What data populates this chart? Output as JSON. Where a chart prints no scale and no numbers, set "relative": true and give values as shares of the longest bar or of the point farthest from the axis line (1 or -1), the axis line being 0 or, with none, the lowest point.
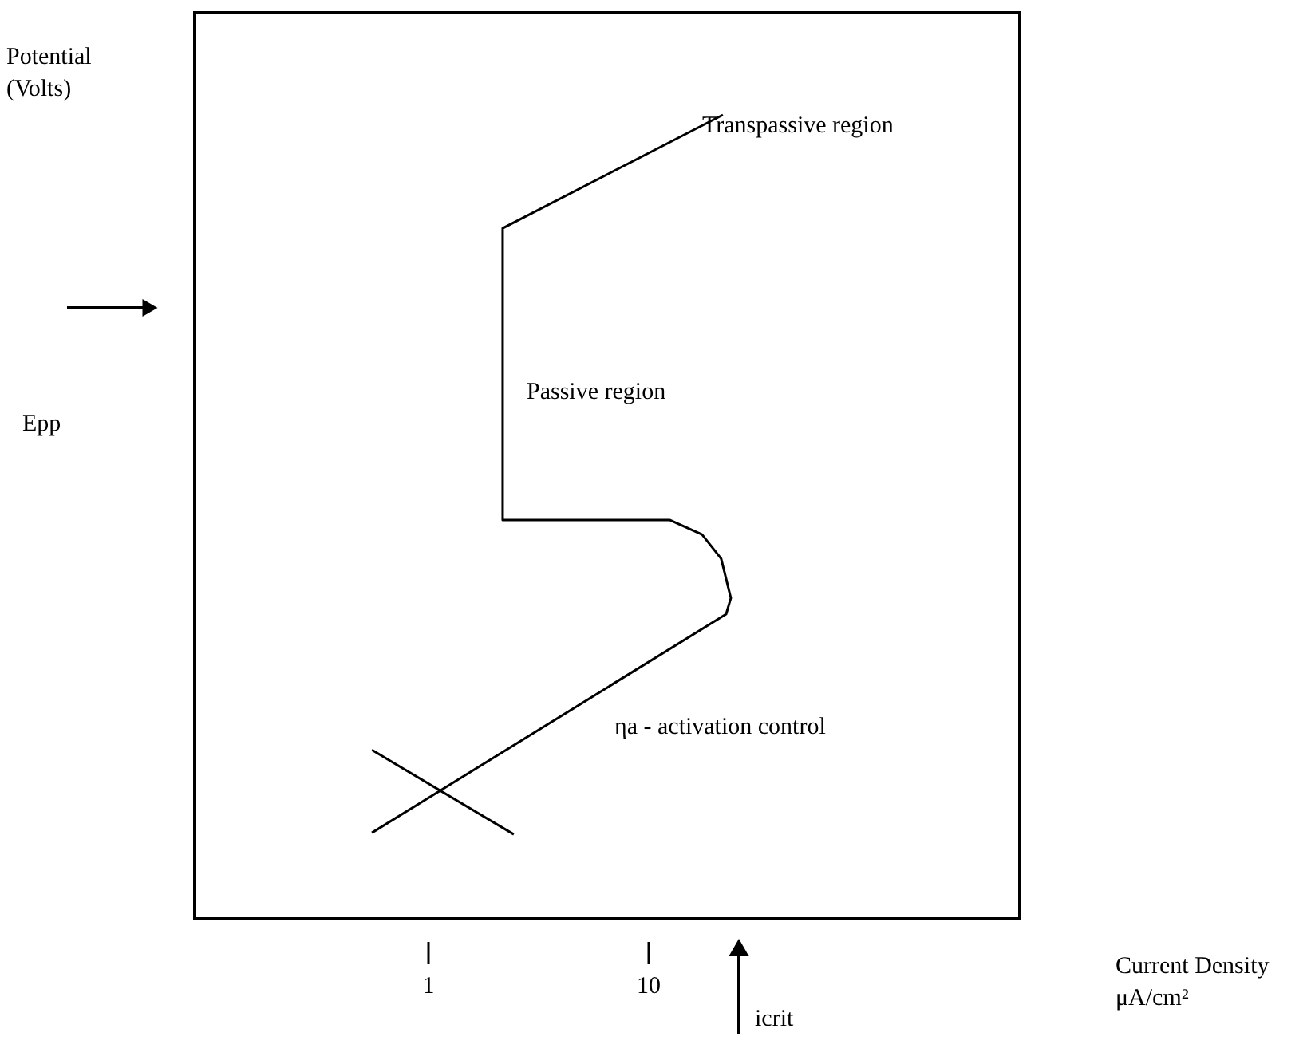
{
  "chart_data": {
    "type": "line",
    "relative": true,
    "log": "x",
    "xlim": [
      0.0875,
      488
    ],
    "xticks": [
      1,
      10
    ],
    "grid": false,
    "ylabel": "Potential (Volts)",
    "xlabel": "Current Density μA/cm²",
    "series": [
      {
        "color": "#000000",
        "x": [
          0.558,
          22.65,
          23.8,
          21.5,
          17.6,
          12.6,
          2.19,
          2.19,
          21.9
        ],
        "values": [
          0.107,
          0.379,
          0.399,
          0.448,
          0.478,
          0.496,
          0.496,
          0.859,
          1.0
        ]
      },
      {
        "color": "#000000",
        "x": [
          0.558,
          2.46
        ],
        "values": [
          0.21,
          0.105
        ]
      }
    ],
    "annotations": [
      "Transpassive region",
      "Passive region",
      "ηa - activation control",
      "Epp",
      "icrit"
    ]
  }
}
